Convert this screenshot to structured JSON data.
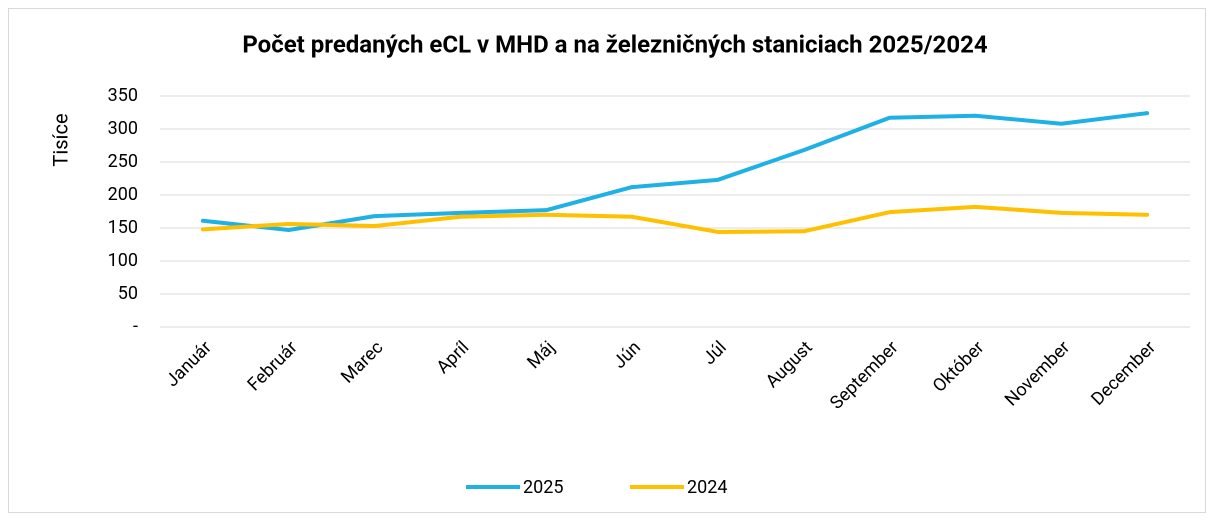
{
  "chart_data": {
    "type": "line",
    "title": "Počet predaných eCL v MHD a na železničných staniciach 2025/2024",
    "y_label": "Tisíce",
    "categories": [
      "Január",
      "Február",
      "Marec",
      "Apríl",
      "Máj",
      "Jún",
      "Júl",
      "August",
      "September",
      "Október",
      "November",
      "December"
    ],
    "series": [
      {
        "name": "2025",
        "color": "#1fb0e6",
        "values": [
          161,
          147,
          168,
          173,
          177,
          212,
          223,
          268,
          317,
          320,
          308,
          324
        ]
      },
      {
        "name": "2024",
        "color": "#ffc000",
        "values": [
          148,
          156,
          153,
          167,
          170,
          167,
          144,
          145,
          174,
          182,
          173,
          170
        ]
      }
    ],
    "ylim": [
      0,
      350
    ],
    "yticks": [
      {
        "value": 0,
        "label": "-"
      },
      50,
      100,
      150,
      200,
      250,
      300,
      350
    ],
    "grid": true,
    "legend": "bottom"
  }
}
